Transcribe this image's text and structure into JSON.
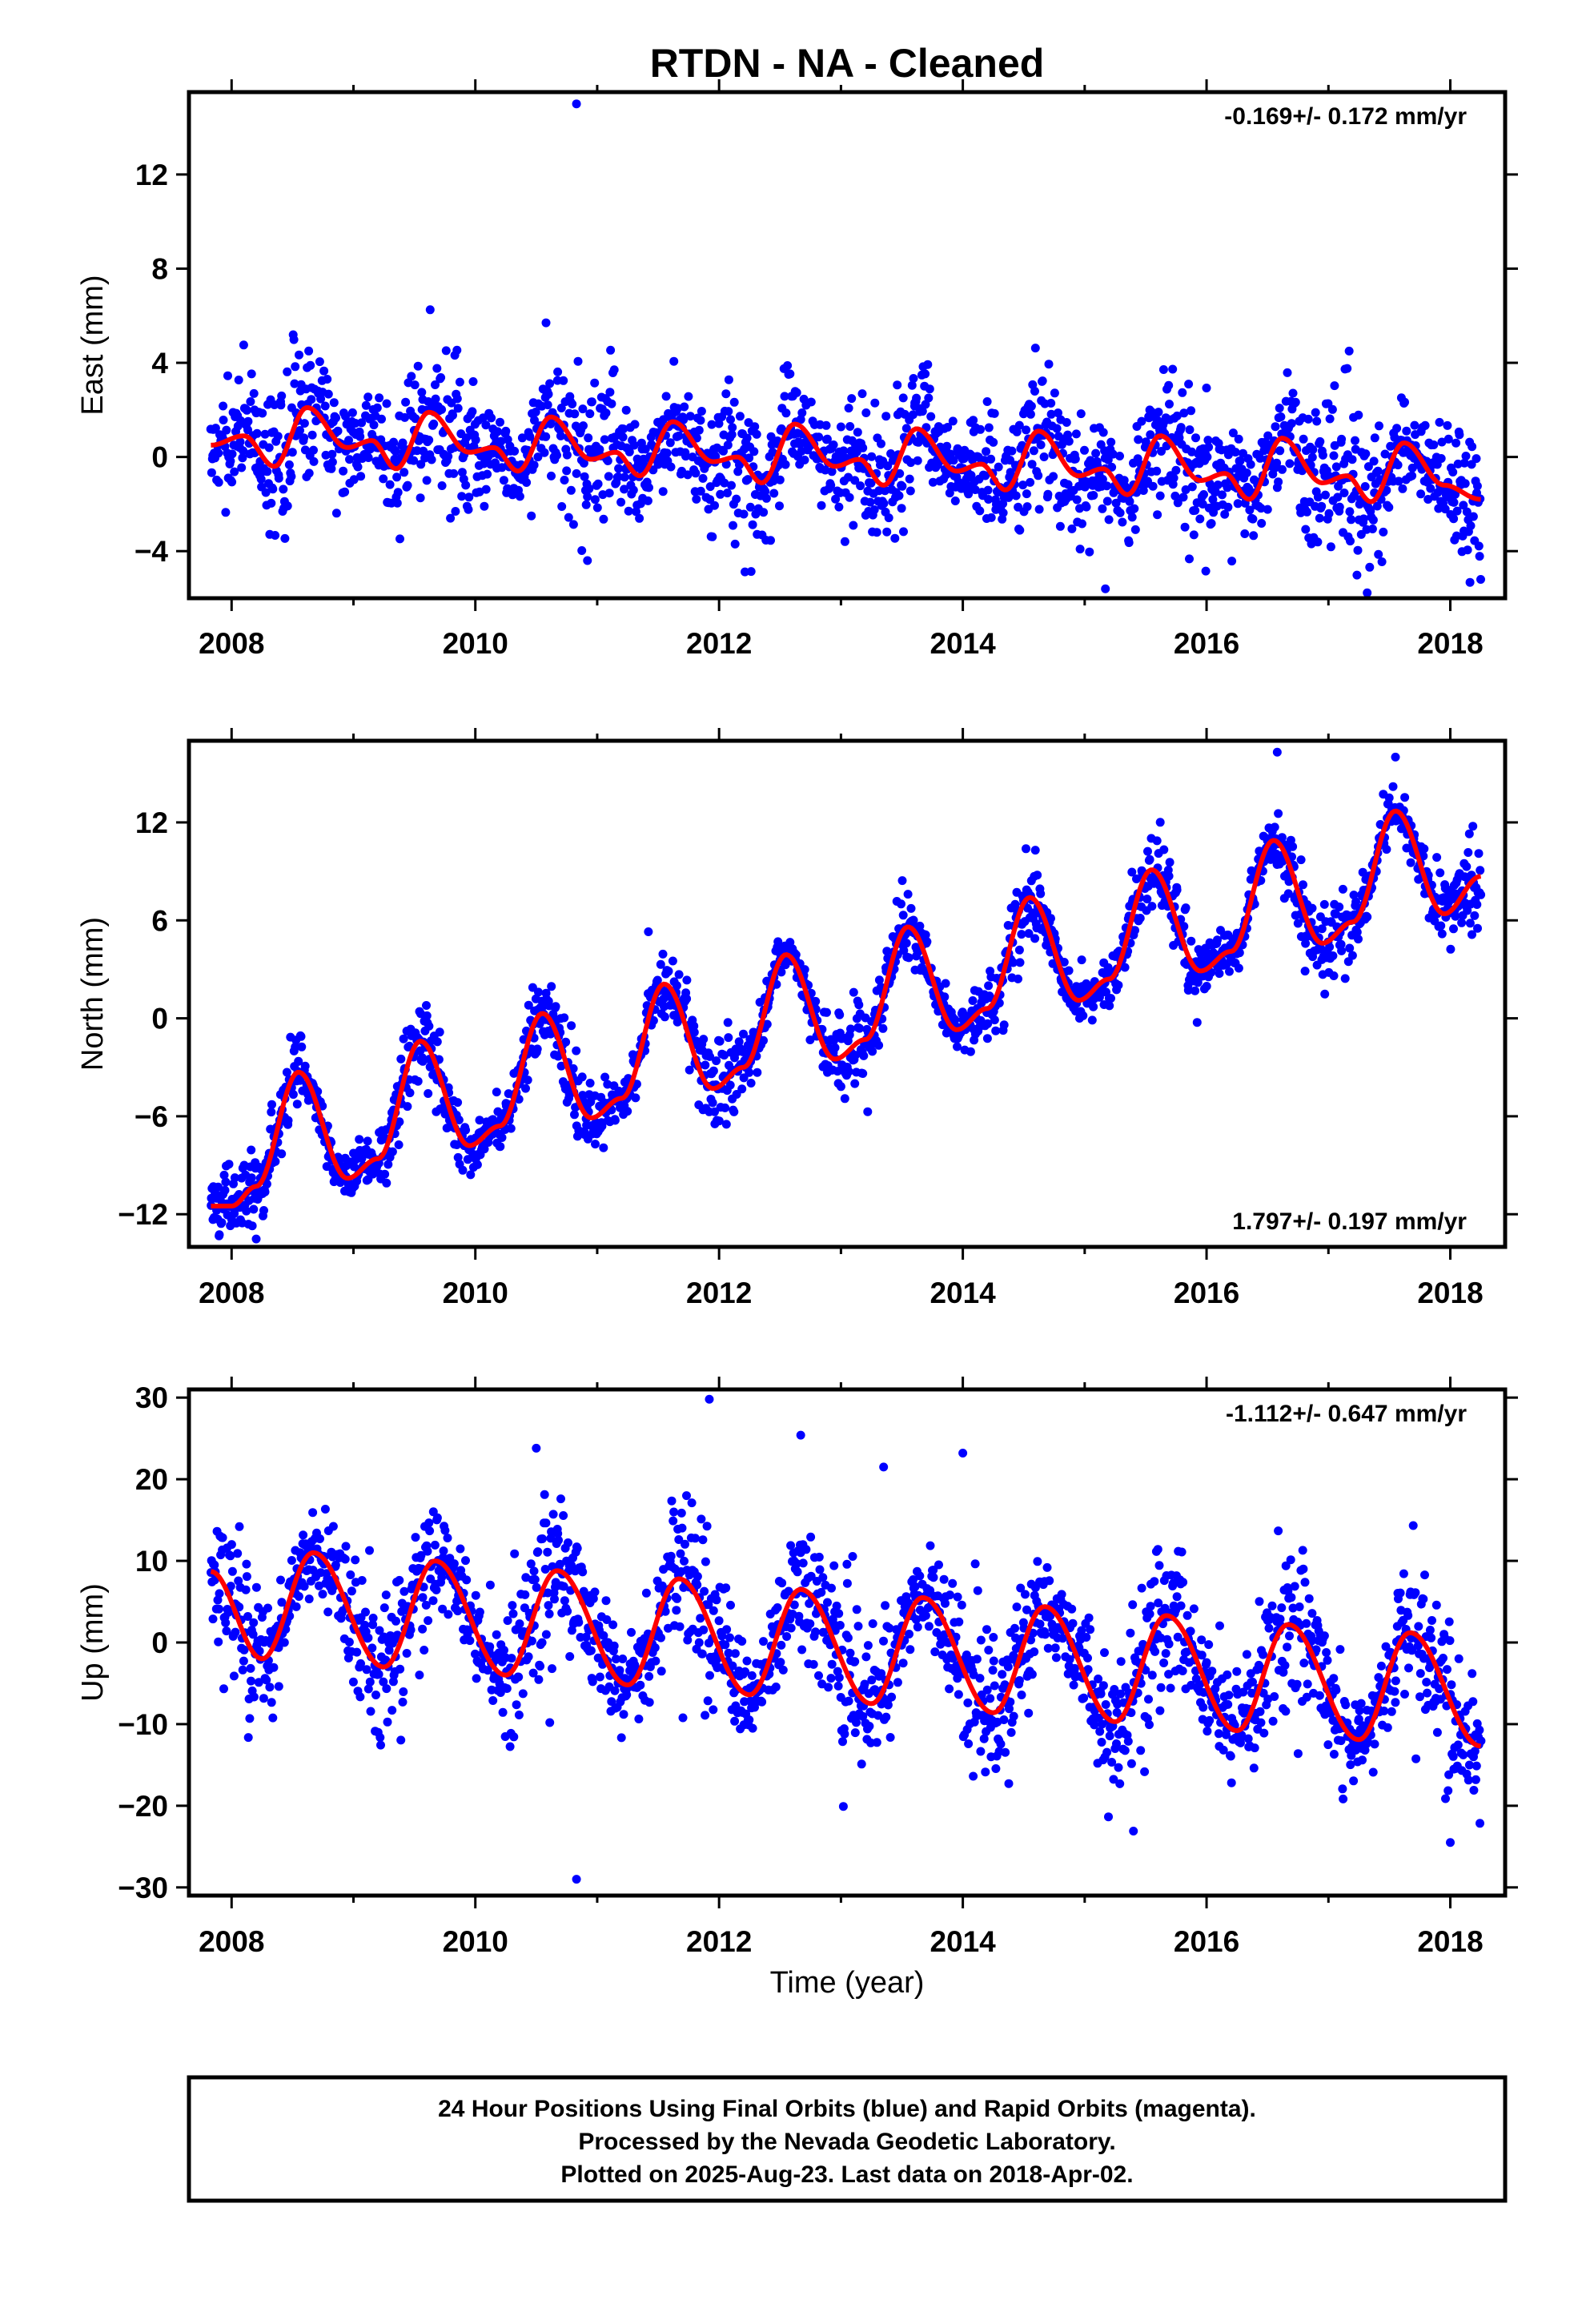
{
  "chart_data": [
    {
      "type": "scatter",
      "title": "RTDN  - NA - Cleaned",
      "ylabel": "East (mm)",
      "xlabel": "",
      "xlim": [
        2007.65,
        2018.45
      ],
      "ylim": [
        -6,
        15.5
      ],
      "yticks": [
        -4,
        0,
        4,
        8,
        12
      ],
      "xticks": [
        2008,
        2010,
        2012,
        2014,
        2016,
        2018
      ],
      "rate_label": "-0.169+/- 0.172 mm/yr",
      "rate_label_position": "top-right",
      "grid": false,
      "series": [
        {
          "role": "observations",
          "color": "#0000ff",
          "x_range": [
            2007.83,
            2018.25
          ],
          "trend_mm_per_yr": -0.169,
          "annual_amplitude": 1.2,
          "scatter_sd": 1.3,
          "outliers": [
            [
              2010.83,
              15.0
            ],
            [
              2015.17,
              -5.6
            ],
            [
              2010.58,
              5.7
            ],
            [
              2017.17,
              4.5
            ],
            [
              2010.92,
              -4.4
            ]
          ]
        },
        {
          "role": "model",
          "color": "#ff0000",
          "x": [
            2007.83,
            2008.1,
            2008.35,
            2008.62,
            2008.95,
            2009.15,
            2009.35,
            2009.62,
            2009.95,
            2010.15,
            2010.35,
            2010.62,
            2010.95,
            2011.15,
            2011.35,
            2011.62,
            2011.95,
            2012.15,
            2012.35,
            2012.62,
            2012.95,
            2013.15,
            2013.35,
            2013.62,
            2013.95,
            2014.15,
            2014.35,
            2014.62,
            2014.95,
            2015.15,
            2015.35,
            2015.62,
            2015.95,
            2016.15,
            2016.35,
            2016.62,
            2016.95,
            2017.15,
            2017.35,
            2017.62,
            2017.95,
            2018.25
          ],
          "y": [
            0.5,
            0.9,
            -0.4,
            2.1,
            0.4,
            0.7,
            -0.5,
            1.9,
            0.2,
            0.4,
            -0.6,
            1.7,
            -0.1,
            0.2,
            -0.8,
            1.5,
            -0.2,
            0.0,
            -1.1,
            1.4,
            -0.4,
            -0.1,
            -1.2,
            1.2,
            -0.6,
            -0.3,
            -1.4,
            1.1,
            -0.8,
            -0.5,
            -1.6,
            0.9,
            -1.0,
            -0.7,
            -1.8,
            0.8,
            -1.1,
            -0.8,
            -1.9,
            0.6,
            -1.2,
            -1.8
          ]
        }
      ]
    },
    {
      "type": "scatter",
      "title": "",
      "ylabel": "North (mm)",
      "xlabel": "",
      "xlim": [
        2007.65,
        2018.45
      ],
      "ylim": [
        -14,
        17
      ],
      "yticks": [
        -12,
        -6,
        0,
        6,
        12
      ],
      "xticks": [
        2008,
        2010,
        2012,
        2014,
        2016,
        2018
      ],
      "rate_label": "1.797+/- 0.197 mm/yr",
      "rate_label_position": "bottom-right",
      "grid": false,
      "series": [
        {
          "role": "observations",
          "color": "#0000ff",
          "x_range": [
            2007.83,
            2018.25
          ],
          "trend_mm_per_yr": 1.797,
          "annual_amplitude": 3.5,
          "scatter_sd": 1.0,
          "outliers": [
            [
              2016.58,
              16.3
            ],
            [
              2017.55,
              16.0
            ],
            [
              2011.42,
              5.3
            ],
            [
              2013.55,
              7.6
            ]
          ]
        },
        {
          "role": "model",
          "color": "#ff0000",
          "x": [
            2007.83,
            2008.0,
            2008.2,
            2008.55,
            2008.95,
            2009.2,
            2009.55,
            2009.95,
            2010.2,
            2010.55,
            2010.95,
            2011.2,
            2011.55,
            2011.95,
            2012.2,
            2012.55,
            2012.95,
            2013.2,
            2013.55,
            2013.95,
            2014.2,
            2014.55,
            2014.95,
            2015.2,
            2015.55,
            2015.95,
            2016.2,
            2016.55,
            2016.95,
            2017.2,
            2017.55,
            2017.95,
            2018.25
          ],
          "y": [
            -11.5,
            -11.5,
            -10.3,
            -3.3,
            -9.8,
            -8.6,
            -1.4,
            -7.8,
            -6.6,
            0.3,
            -6.1,
            -4.9,
            2.1,
            -4.3,
            -3.0,
            3.9,
            -2.5,
            -1.3,
            5.6,
            -0.7,
            0.6,
            7.4,
            1.1,
            2.4,
            9.1,
            2.9,
            4.1,
            10.9,
            4.6,
            5.9,
            12.7,
            6.4,
            8.7
          ]
        }
      ]
    },
    {
      "type": "scatter",
      "title": "",
      "ylabel": "Up (mm)",
      "xlabel": "Time (year)",
      "xlim": [
        2007.65,
        2018.45
      ],
      "ylim": [
        -31,
        31
      ],
      "yticks": [
        -30,
        -20,
        -10,
        0,
        10,
        20,
        30
      ],
      "xticks": [
        2008,
        2010,
        2012,
        2014,
        2016,
        2018
      ],
      "rate_label": "-1.112+/- 0.647 mm/yr",
      "rate_label_position": "top-right",
      "grid": false,
      "series": [
        {
          "role": "observations",
          "color": "#0000ff",
          "x_range": [
            2007.83,
            2018.25
          ],
          "trend_mm_per_yr": -1.112,
          "annual_amplitude": 6.5,
          "scatter_sd": 4.0,
          "outliers": [
            [
              2011.92,
              29.8
            ],
            [
              2010.83,
              -29.0
            ],
            [
              2012.67,
              25.4
            ],
            [
              2010.5,
              23.8
            ],
            [
              2013.35,
              21.5
            ],
            [
              2018.0,
              -24.5
            ],
            [
              2015.4,
              -23.1
            ],
            [
              2014.0,
              23.2
            ]
          ]
        },
        {
          "role": "model",
          "color": "#ff0000",
          "x": [
            2007.83,
            2008.25,
            2008.67,
            2009.25,
            2009.67,
            2010.25,
            2010.67,
            2011.25,
            2011.67,
            2012.25,
            2012.67,
            2013.25,
            2013.67,
            2014.25,
            2014.67,
            2015.25,
            2015.67,
            2016.25,
            2016.67,
            2017.25,
            2017.67,
            2018.25
          ],
          "y": [
            8.7,
            -2.0,
            11.0,
            -3.0,
            10.0,
            -4.0,
            8.8,
            -5.2,
            7.8,
            -6.4,
            6.5,
            -7.5,
            5.5,
            -8.6,
            4.4,
            -9.7,
            3.3,
            -10.8,
            2.2,
            -11.9,
            1.2,
            -12.7
          ]
        }
      ]
    }
  ],
  "footer": {
    "line1": "24 Hour Positions Using Final Orbits (blue) and Rapid Orbits (magenta).",
    "line2": "Processed by the Nevada Geodetic Laboratory.",
    "line3": "Plotted on 2025-Aug-23. Last data on 2018-Apr-02."
  }
}
